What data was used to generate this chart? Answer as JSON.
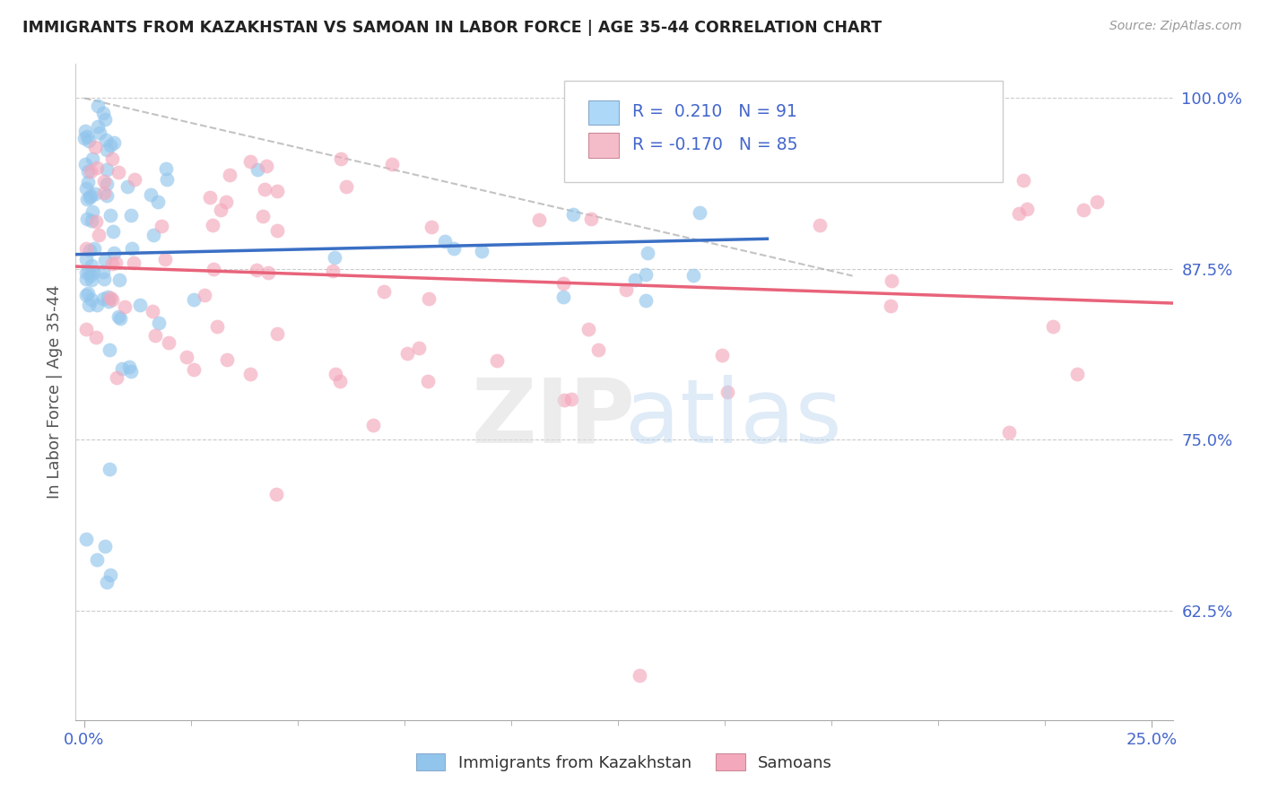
{
  "title": "IMMIGRANTS FROM KAZAKHSTAN VS SAMOAN IN LABOR FORCE | AGE 35-44 CORRELATION CHART",
  "source": "Source: ZipAtlas.com",
  "ylabel": "In Labor Force | Age 35-44",
  "legend_label1": "Immigrants from Kazakhstan",
  "legend_label2": "Samoans",
  "r1": 0.21,
  "n1": 91,
  "r2": -0.17,
  "n2": 85,
  "xlim": [
    -0.002,
    0.255
  ],
  "ylim": [
    0.545,
    1.025
  ],
  "yticks": [
    0.625,
    0.75,
    0.875,
    1.0
  ],
  "ytick_labels": [
    "62.5%",
    "75.0%",
    "87.5%",
    "100.0%"
  ],
  "color_kaz": "#92C5EC",
  "color_sam": "#F4A8BC",
  "trend_color_kaz": "#3A6FC4",
  "trend_color_sam": "#E8637A",
  "r_n_color": "#4466CC",
  "background_color": "#FFFFFF",
  "title_color": "#222222"
}
